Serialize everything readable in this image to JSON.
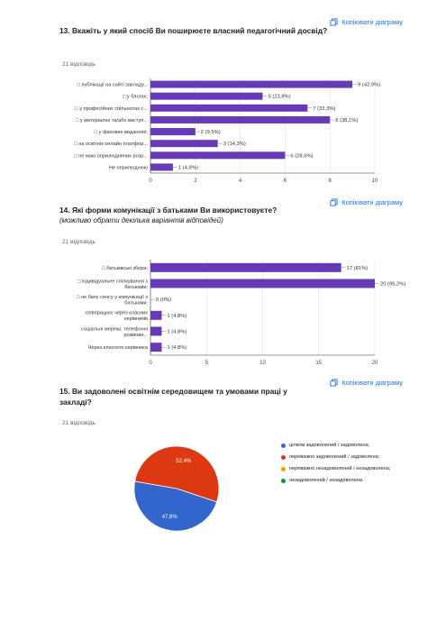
{
  "copy_label": "Копіювати діаграму",
  "q13": {
    "title": "13. Вкажіть у який спосіб Ви поширюєте власний педагогічний досвід?",
    "responses": "21 відповідь"
  },
  "q14": {
    "title": "14.  Які форми комунікації з батьками Ви використовуєте?",
    "subtitle": "(можливо обрати декілька варіантів відповідей)",
    "responses": "21 відповідь"
  },
  "q15": {
    "title": "15. Ви задоволені освітнім середовищем та умовами праці у закладі?",
    "responses": "21 відповідь"
  },
  "chart_data": [
    {
      "type": "bar",
      "orientation": "horizontal",
      "color": "#673ab7",
      "categories": [
        "□ публікації на сайті закладу...",
        "□ у блогах;",
        "□ у професійних спільнотах с...",
        "□ у матеріалах та/або виступ...",
        "□ у фахових виданнях;",
        "□ на освітніх онлайн платфор...",
        "□ не маю оприлюднених розр...",
        "Не оприлюднюю"
      ],
      "values": [
        9,
        5,
        7,
        8,
        2,
        3,
        6,
        1
      ],
      "value_labels": [
        "9 (42,9%)",
        "5 (23,8%)",
        "7 (33,3%)",
        "8 (38,1%)",
        "2 (9,5%)",
        "3 (14,3%)",
        "6 (28,6%)",
        "1 (4,8%)"
      ],
      "xlim": [
        0,
        10
      ],
      "xticks": [
        "0",
        "2",
        "4",
        "6",
        "8",
        "10"
      ],
      "grid": true
    },
    {
      "type": "bar",
      "orientation": "horizontal",
      "color": "#673ab7",
      "categories": [
        [
          "□ батьківські збори;"
        ],
        [
          "□ індивідуальне спілкування з",
          "батьками;"
        ],
        [
          "□ не бачу сенсу у комунікації з",
          "батьками;"
        ],
        [
          "співпрацюю через класних",
          "керівників"
        ],
        [
          "соціальні мережі, телефонні",
          "розмови..."
        ],
        [
          "Через класного керівника"
        ]
      ],
      "values": [
        17,
        20,
        0,
        1,
        1,
        1
      ],
      "value_labels": [
        "17 (81%)",
        "20 (95,2%)",
        "0 (0%)",
        "1 (4,8%)",
        "1 (4,8%)",
        "1 (4,8%)"
      ],
      "xlim": [
        0,
        20
      ],
      "xticks": [
        "0",
        "5",
        "10",
        "15",
        "20"
      ],
      "grid": true
    },
    {
      "type": "pie",
      "labels": [
        "цілком задоволений / задоволена;",
        "переважно задоволений / задоволена;",
        "переважно незадоволений / незадоволена;",
        "незадоволений / незадоволена."
      ],
      "values": [
        47.6,
        52.4,
        0,
        0
      ],
      "value_labels": [
        "47,6%",
        "52,4%",
        "",
        ""
      ],
      "colors": [
        "#3366cc",
        "#dc3912",
        "#ff9900",
        "#109618"
      ],
      "legend": "right"
    }
  ]
}
